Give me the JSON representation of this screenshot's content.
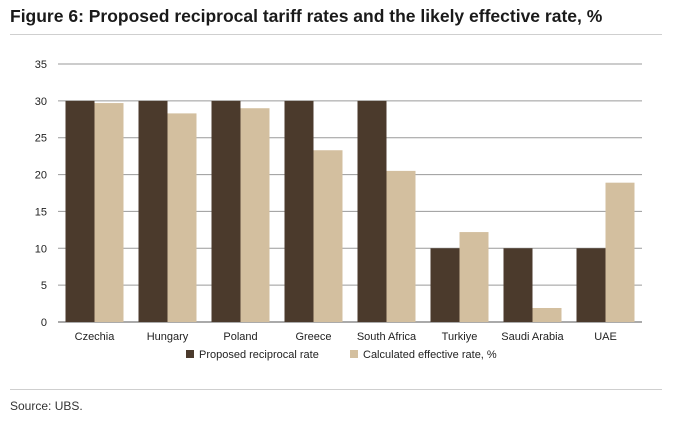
{
  "figure": {
    "title": "Figure 6: Proposed reciprocal tariff rates and the likely effective rate, %",
    "source": "Source: UBS."
  },
  "chart_data": {
    "type": "bar",
    "title": "Figure 6: Proposed reciprocal tariff rates and the likely effective rate, %",
    "xlabel": "",
    "ylabel": "",
    "categories": [
      "Czechia",
      "Hungary",
      "Poland",
      "Greece",
      "South Africa",
      "Turkiye",
      "Saudi Arabia",
      "UAE"
    ],
    "series": [
      {
        "name": "Proposed reciprocal rate",
        "color": "#4b3a2c",
        "values": [
          30,
          30,
          30,
          30,
          30,
          10,
          10,
          10
        ]
      },
      {
        "name": "Calculated effective rate, %",
        "color": "#d3bf9f",
        "values": [
          29.7,
          28.3,
          29.0,
          23.3,
          20.5,
          12.2,
          1.9,
          18.9
        ]
      }
    ],
    "ylim": [
      0,
      35
    ],
    "yticks": [
      0,
      5,
      10,
      15,
      20,
      25,
      30,
      35
    ],
    "grid": true,
    "legend_position": "bottom"
  }
}
